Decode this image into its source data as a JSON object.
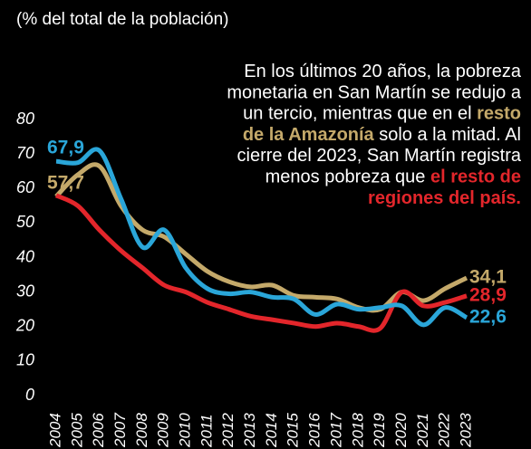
{
  "chart_data": {
    "type": "line",
    "subtitle": "(% del total de la población)",
    "x": [
      "2004",
      "2005",
      "2006",
      "2007",
      "2008",
      "2009",
      "2010",
      "2011",
      "2012",
      "2013",
      "2014",
      "2015",
      "2016",
      "2017",
      "2018",
      "2019",
      "2020",
      "2021",
      "2022",
      "2023"
    ],
    "series": [
      {
        "color": "#c4a96a",
        "values": [
          57.7,
          64,
          66.5,
          55,
          48,
          46,
          41,
          36,
          33,
          31.5,
          32,
          29,
          28.5,
          28,
          25.5,
          25,
          30,
          27.5,
          31,
          34.1
        ],
        "value_labels": [
          "57,7",
          null,
          null,
          null,
          null,
          null,
          null,
          null,
          null,
          null,
          null,
          null,
          null,
          null,
          null,
          null,
          null,
          null,
          null,
          "34,1"
        ]
      },
      {
        "color": "#e3262b",
        "values": [
          58,
          55,
          48,
          42,
          37,
          32,
          30,
          27,
          25,
          23,
          22,
          21,
          20,
          21,
          20,
          19.5,
          30,
          26,
          27,
          28.9
        ],
        "value_labels": [
          null,
          null,
          null,
          null,
          null,
          null,
          null,
          null,
          null,
          null,
          null,
          null,
          null,
          null,
          null,
          null,
          null,
          null,
          null,
          "28,9"
        ]
      },
      {
        "color": "#2aa6d9",
        "values": [
          67.9,
          67.5,
          71,
          57,
          43,
          48,
          37,
          31,
          29.5,
          30,
          28.5,
          28,
          23.5,
          26.5,
          25,
          25.5,
          26,
          20.5,
          25.5,
          22.6
        ],
        "value_labels": [
          "67,9",
          null,
          null,
          null,
          null,
          null,
          null,
          null,
          null,
          null,
          null,
          null,
          null,
          null,
          null,
          null,
          null,
          null,
          null,
          "22,6"
        ]
      }
    ],
    "ylim": [
      0,
      80
    ],
    "yticks": [
      0,
      10,
      20,
      30,
      40,
      50,
      60,
      70,
      80
    ],
    "grid": false,
    "annotation_lines": [
      [
        {
          "text": "En los últimos 20 años, la pobreza"
        }
      ],
      [
        {
          "text": "monetaria en San Martín se redujo a"
        }
      ],
      [
        {
          "text": "un tercio, mientras que en el "
        },
        {
          "text": "resto",
          "color": "#c4a96a"
        }
      ],
      [
        {
          "text": "de la Amazonía",
          "color": "#c4a96a"
        },
        {
          "text": " solo a la mitad. Al"
        }
      ],
      [
        {
          "text": "cierre del 2023, San Martín registra"
        }
      ],
      [
        {
          "text": "menos pobreza que "
        },
        {
          "text": "el resto de",
          "color": "#e3262b"
        }
      ],
      [
        {
          "text": "regiones del país.",
          "color": "#e3262b"
        }
      ]
    ]
  }
}
